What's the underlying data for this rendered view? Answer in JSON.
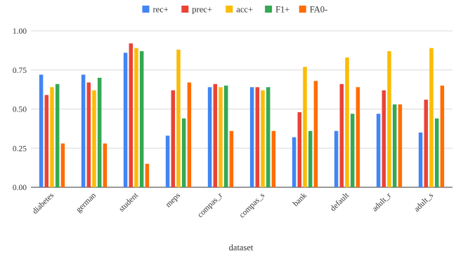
{
  "chart_data": {
    "type": "bar",
    "xlabel": "dataset",
    "ylabel": "",
    "title": "",
    "ylim": [
      0,
      1.0
    ],
    "yticks": [
      "0.00",
      "0.25",
      "0.50",
      "0.75",
      "1.00"
    ],
    "grid": "horizontal",
    "legend_position": "top-center",
    "categories": [
      "diabetes",
      "german",
      "student",
      "meps",
      "compas_r",
      "compas_s",
      "bank",
      "default",
      "adult_r",
      "adult_s"
    ],
    "series": [
      {
        "name": "rec+",
        "color": "#4285f4",
        "values": [
          0.72,
          0.72,
          0.86,
          0.33,
          0.64,
          0.64,
          0.32,
          0.36,
          0.47,
          0.35
        ]
      },
      {
        "name": "prec+",
        "color": "#ea4335",
        "values": [
          0.59,
          0.67,
          0.92,
          0.62,
          0.66,
          0.64,
          0.48,
          0.66,
          0.62,
          0.56
        ]
      },
      {
        "name": "acc+",
        "color": "#fbbc04",
        "values": [
          0.64,
          0.62,
          0.89,
          0.88,
          0.64,
          0.62,
          0.77,
          0.83,
          0.87,
          0.89
        ]
      },
      {
        "name": "F1+",
        "color": "#34a853",
        "values": [
          0.66,
          0.7,
          0.87,
          0.44,
          0.65,
          0.64,
          0.36,
          0.47,
          0.53,
          0.44
        ]
      },
      {
        "name": "FA0-",
        "color": "#ff6d01",
        "values": [
          0.28,
          0.28,
          0.15,
          0.67,
          0.36,
          0.36,
          0.68,
          0.64,
          0.53,
          0.65
        ]
      }
    ]
  }
}
